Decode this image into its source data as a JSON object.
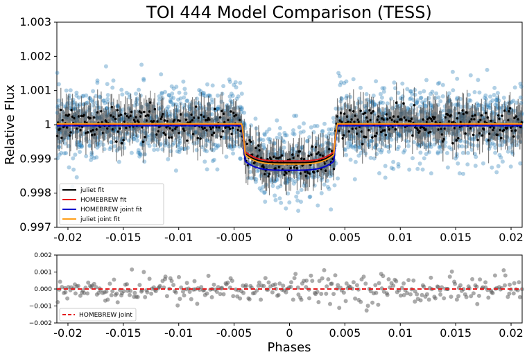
{
  "colors": {
    "flux_points": "#1f77b4",
    "binned_points": "#000000",
    "residual_points": "#555555",
    "juliet_fit": "#000000",
    "homebrew_fit": "#e41a1c",
    "homebrew_joint_fit": "#0000cc",
    "juliet_joint_fit": "#ff9f1a",
    "residual_zero_line": "#e41a1c"
  },
  "chart_data": [
    {
      "type": "scatter",
      "title": "TOI 444 Model Comparison (TESS)",
      "xlabel": "",
      "ylabel": "Relative Flux",
      "xlim": [
        -0.021,
        0.021
      ],
      "ylim": [
        0.997,
        1.003
      ],
      "xticks": [
        -0.02,
        -0.015,
        -0.01,
        -0.005,
        0,
        0.005,
        0.01,
        0.015,
        0.02
      ],
      "xtick_labels": [
        "-0.02",
        "-0.015",
        "-0.01",
        "-0.005",
        "0",
        "0.005",
        "0.01",
        "0.015",
        "0.02"
      ],
      "yticks": [
        0.997,
        0.998,
        0.999,
        1.0,
        1.001,
        1.002,
        1.003
      ],
      "ytick_labels": [
        "0.997",
        "0.998",
        "0.999",
        "1",
        "1.001",
        "1.002",
        "1.003"
      ],
      "grid": false,
      "legend_position": "lower-left",
      "transit": {
        "center": 0.0,
        "full_duration_edge": 0.0043,
        "baseline": 1.0
      },
      "series": [
        {
          "name": "juliet fit",
          "kind": "model",
          "depth_center": 0.00113,
          "depth_edge": 0.00078,
          "baseline": 1.00002
        },
        {
          "name": "HOMEBREW fit",
          "kind": "model",
          "depth_center": 0.00108,
          "depth_edge": 0.00072,
          "baseline": 1.00002
        },
        {
          "name": "HOMEBREW joint fit",
          "kind": "model",
          "depth_center": 0.0013,
          "depth_edge": 0.00095,
          "baseline": 0.99997
        },
        {
          "name": "juliet joint fit",
          "kind": "model",
          "depth_center": 0.00118,
          "depth_edge": 0.00082,
          "baseline": 1.00003
        }
      ],
      "observations": {
        "unbinned_scatter_sigma": 0.00055,
        "binned_scatter_sigma": 0.00022,
        "binned_errorbar_typical": 0.00045,
        "unbinned_count_approx": 1900,
        "binned_count_approx": 520
      }
    },
    {
      "type": "scatter",
      "title": "",
      "xlabel": "Phases",
      "ylabel": "",
      "xlim": [
        -0.021,
        0.021
      ],
      "ylim": [
        -0.002,
        0.002
      ],
      "xticks": [
        -0.02,
        -0.015,
        -0.01,
        -0.005,
        0,
        0.005,
        0.01,
        0.015,
        0.02
      ],
      "xtick_labels": [
        "-0.02",
        "-0.015",
        "-0.01",
        "-0.005",
        "0",
        "0.005",
        "0.01",
        "0.015",
        "0.02"
      ],
      "yticks": [
        -0.002,
        -0.001,
        0.0,
        0.001,
        0.002
      ],
      "ytick_labels": [
        "−0.002",
        "−0.001",
        "0.000",
        "0.001",
        "0.002"
      ],
      "grid": false,
      "legend_position": "lower-left",
      "series": [
        {
          "name": "HOMEBREW joint",
          "kind": "zero-line",
          "value": 0.0
        }
      ],
      "observations": {
        "residual_scatter_sigma": 0.00042,
        "residual_count_approx": 330
      }
    }
  ]
}
